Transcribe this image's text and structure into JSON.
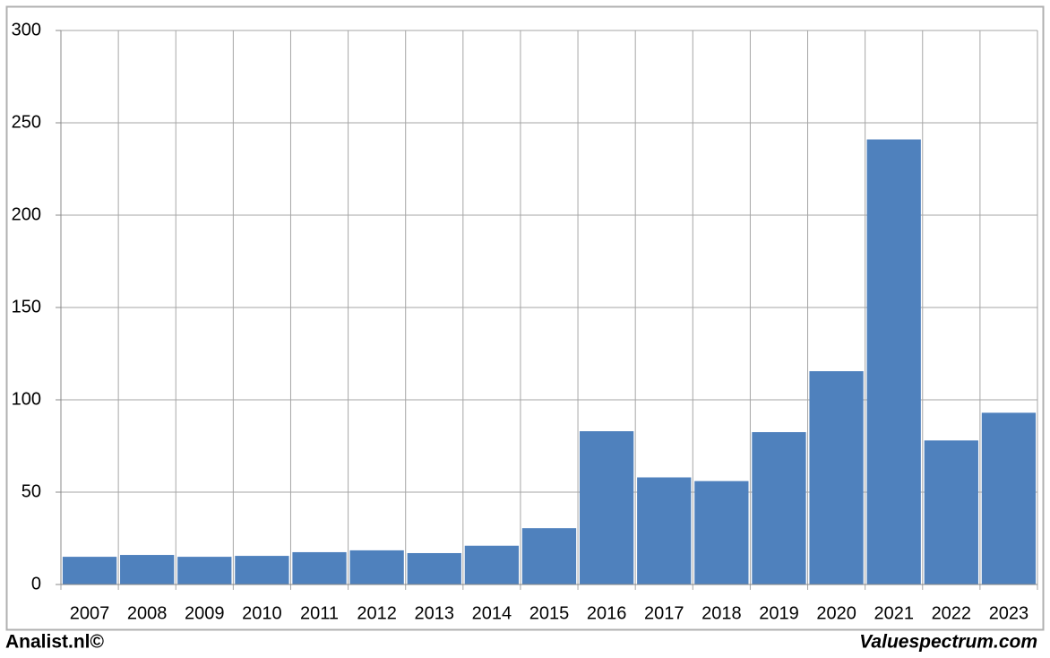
{
  "chart_data": {
    "type": "bar",
    "categories": [
      "2007",
      "2008",
      "2009",
      "2010",
      "2011",
      "2012",
      "2013",
      "2014",
      "2015",
      "2016",
      "2017",
      "2018",
      "2019",
      "2020",
      "2021",
      "2022",
      "2023"
    ],
    "values": [
      15,
      16,
      15,
      15.5,
      17.5,
      18.5,
      17,
      21,
      30.5,
      83,
      58,
      56,
      82.5,
      115.5,
      241,
      78,
      93
    ],
    "color": "#4f81bd",
    "ylim": [
      0,
      300
    ],
    "yticks": [
      0,
      50,
      100,
      150,
      200,
      250,
      300
    ],
    "grid": true,
    "source_left": "Analist.nl©",
    "source_right": "Valuespectrum.com"
  }
}
